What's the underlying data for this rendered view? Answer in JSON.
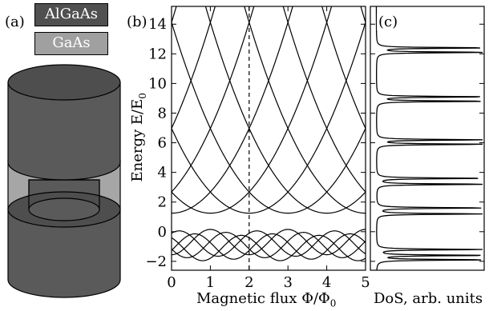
{
  "panels": {
    "a": "(a)",
    "b": "(b)",
    "c": "(c)"
  },
  "legend": {
    "algaas": "AlGaAs",
    "gaas": "GaAs",
    "algaas_color": "#505050",
    "gaas_color": "#a0a0a0"
  },
  "chart_data": [
    {
      "type": "line",
      "panel": "b",
      "xlabel": "Magnetic flux Φ/Φ",
      "xlabel_sub": "0",
      "ylabel": "Energy E/E",
      "ylabel_sub": "0",
      "xlim": [
        0,
        5
      ],
      "ylim": [
        -2.6,
        15.2
      ],
      "xticks": [
        0,
        1,
        2,
        3,
        4,
        5
      ],
      "yticks": [
        -2,
        0,
        2,
        4,
        6,
        8,
        10,
        12,
        14
      ],
      "dashed_vline_x": 2.0,
      "bands": [
        {
          "name": "upper",
          "min": 1.1,
          "max": 15.2,
          "period": 1.0,
          "series_count": 15
        },
        {
          "name": "lower",
          "min": -1.7,
          "max": 0.3,
          "period": 1.0,
          "series_count": 5
        }
      ]
    },
    {
      "type": "line",
      "panel": "c",
      "xlabel": "DoS, arb. units",
      "ylim": [
        -2.6,
        15.2
      ],
      "peaks": [
        -1.9,
        -1.6,
        -1.2,
        1.2,
        1.6,
        3.2,
        3.6,
        5.9,
        6.2,
        8.8,
        9.1,
        12.1,
        12.4
      ]
    }
  ]
}
